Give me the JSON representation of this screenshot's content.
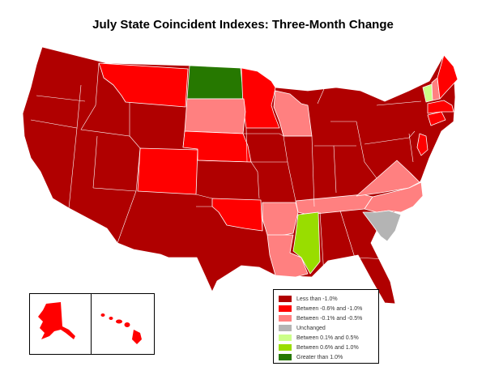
{
  "title": "July State Coincident Indexes: Three-Month Change",
  "colors": {
    "less_than_neg1": "#b00000",
    "neg06_to_neg1": "#ff0000",
    "neg01_to_neg05": "#ff8080",
    "unchanged": "#b4b4b4",
    "pos01_to_05": "#ccff88",
    "pos06_to_1": "#99dd00",
    "greater_than_1": "#267800",
    "border": "#ffffff",
    "outline": "#888888"
  },
  "legend": [
    {
      "label": "Less than -1.0%",
      "color": "#b00000"
    },
    {
      "label": "Between -0.6% and -1.0%",
      "color": "#ff0000"
    },
    {
      "label": "Between -0.1% and -0.5%",
      "color": "#ff8080"
    },
    {
      "label": "Unchanged",
      "color": "#b4b4b4"
    },
    {
      "label": "Between 0.1% and 0.5%",
      "color": "#ccff88"
    },
    {
      "label": "Between 0.6% and 1.0%",
      "color": "#99dd00"
    },
    {
      "label": "Greater than 1.0%",
      "color": "#267800"
    }
  ]
}
